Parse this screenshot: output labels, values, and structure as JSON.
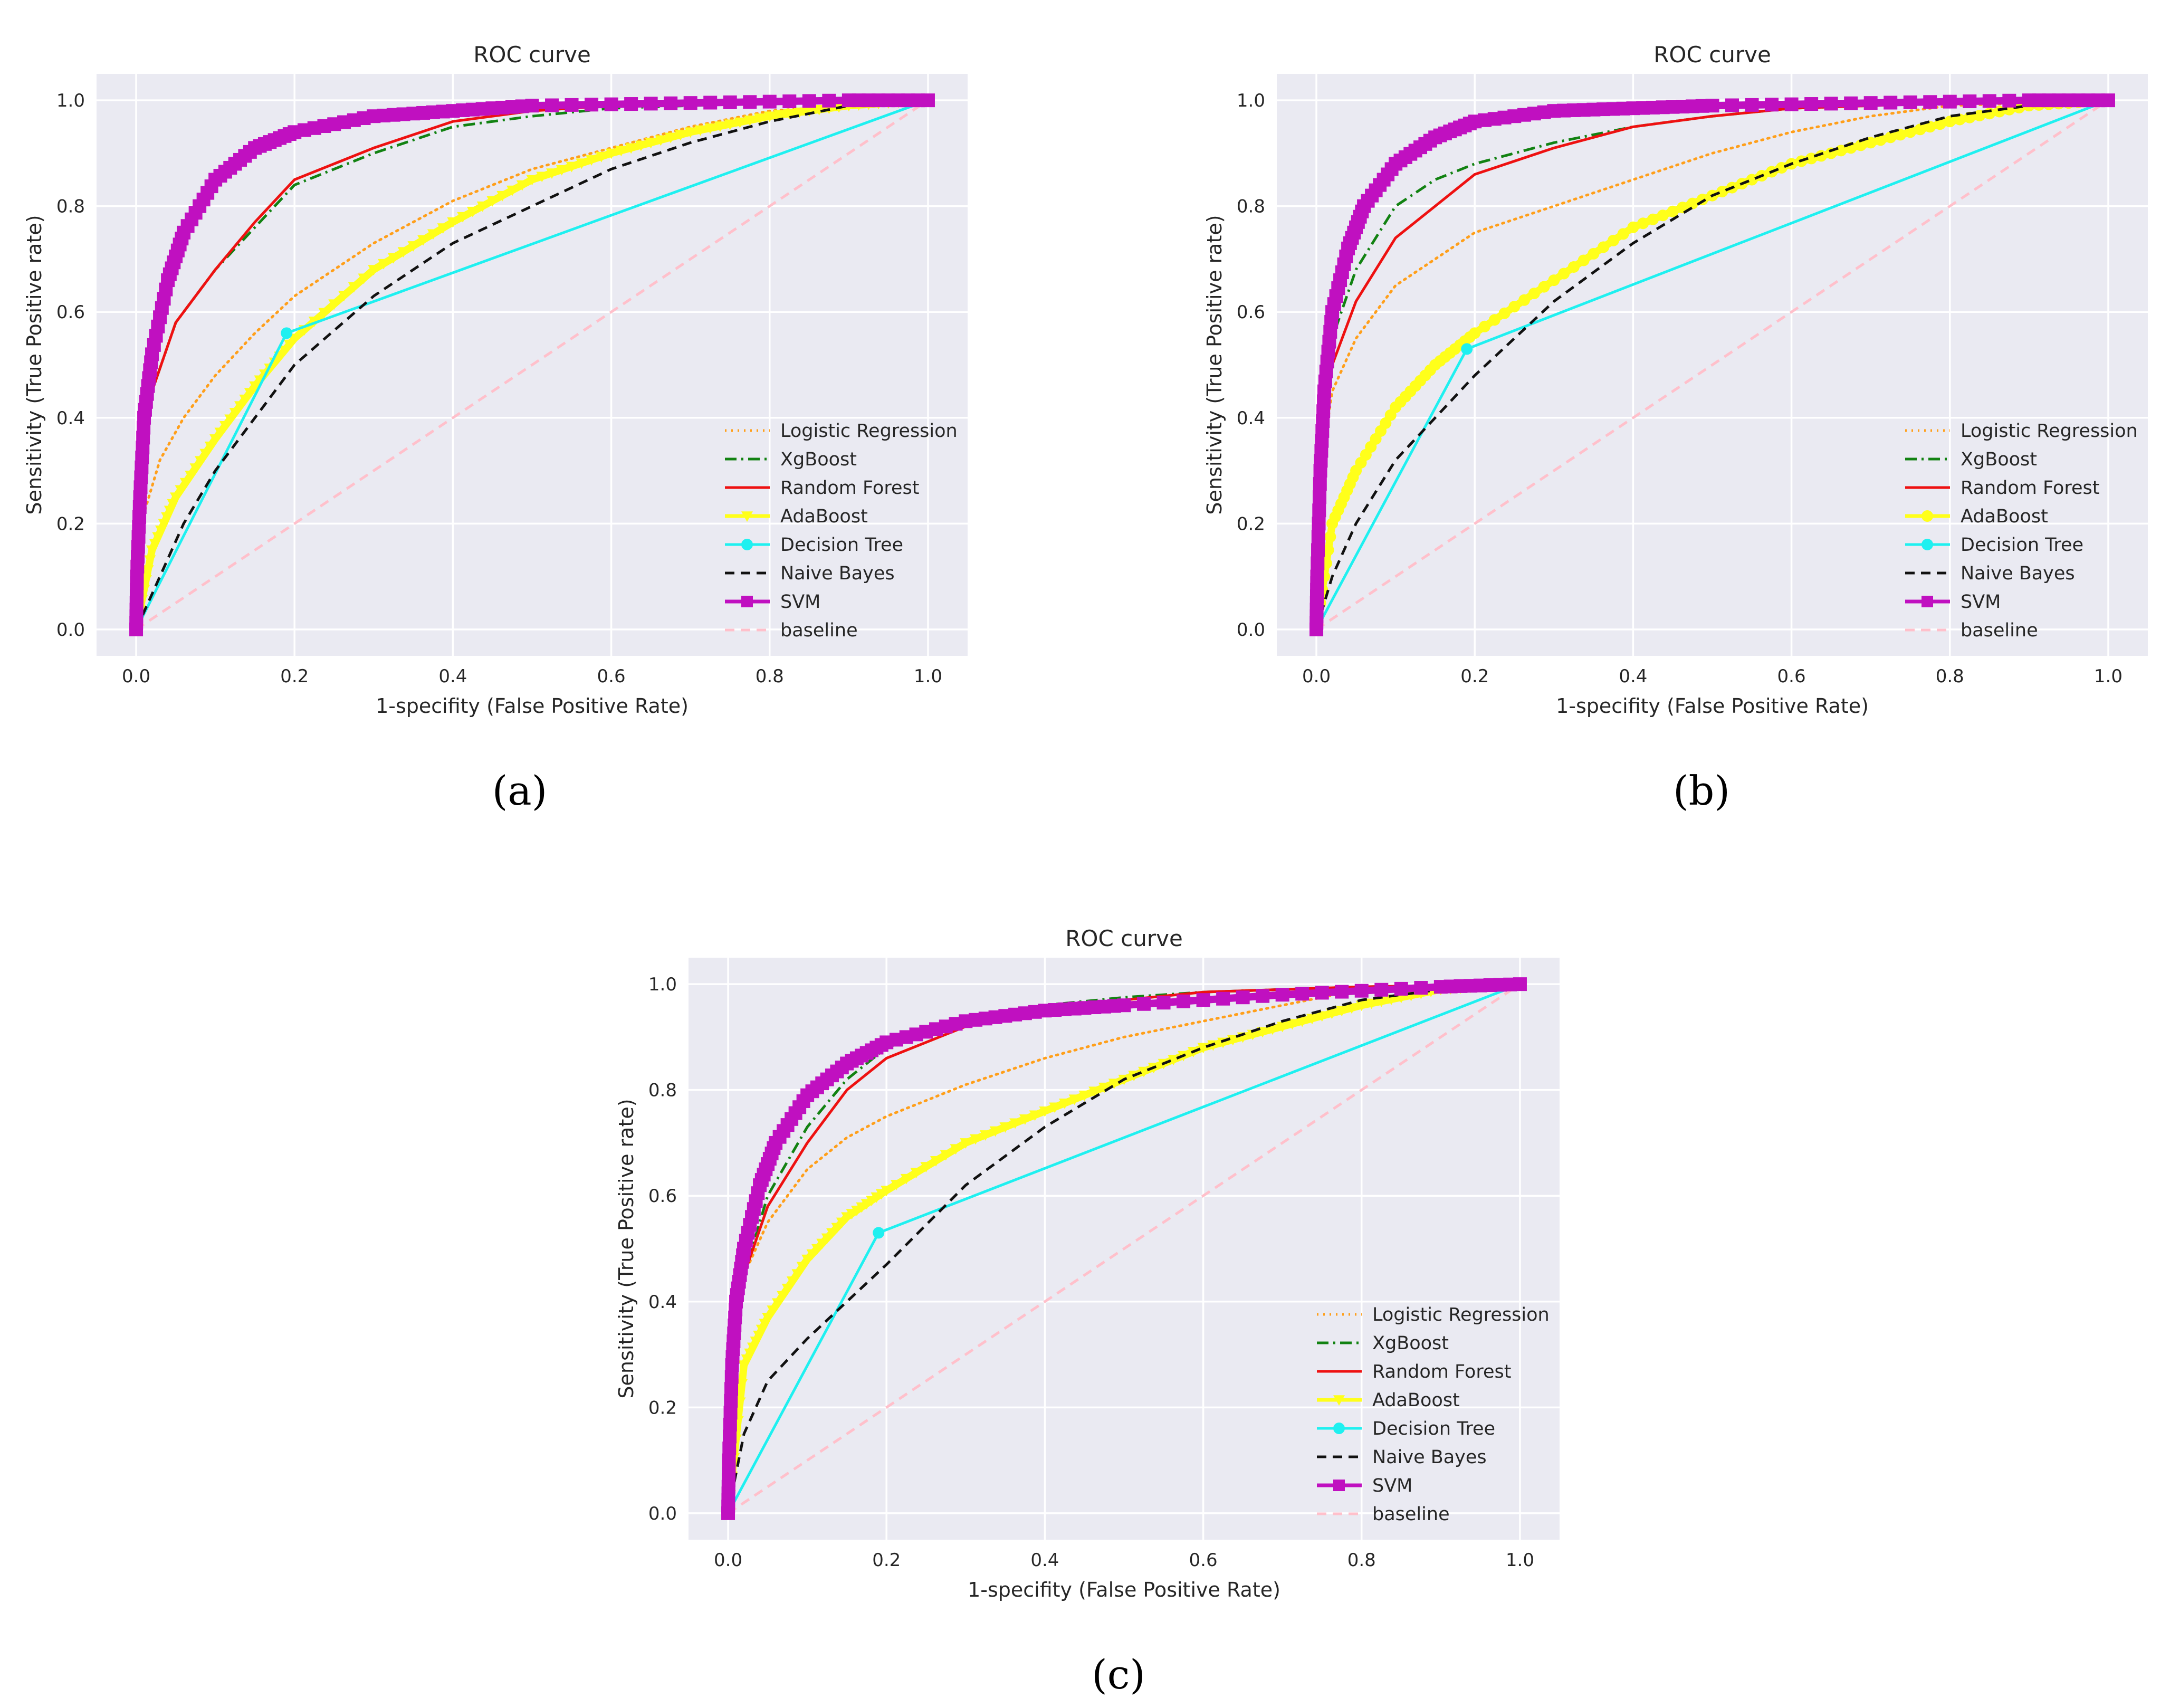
{
  "chart_data": [
    {
      "panel_label": "(a)",
      "type": "line",
      "title": "ROC curve",
      "xlabel": "1-specifity (False Positive Rate)",
      "ylabel": "Sensitivity (True Positive rate)",
      "xlim": [
        -0.05,
        1.05
      ],
      "ylim": [
        -0.05,
        1.05
      ],
      "xticks": [
        "0.0",
        "0.2",
        "0.4",
        "0.6",
        "0.8",
        "1.0"
      ],
      "yticks": [
        "0.0",
        "0.2",
        "0.4",
        "0.6",
        "0.8",
        "1.0"
      ],
      "legend_position": "lower right",
      "series": [
        {
          "name": "Logistic Regression",
          "color": "#ff9f1a",
          "style": "dotted",
          "x": [
            0,
            0.01,
            0.03,
            0.06,
            0.1,
            0.15,
            0.2,
            0.3,
            0.4,
            0.5,
            0.6,
            0.7,
            0.8,
            0.9,
            1.0
          ],
          "y": [
            0,
            0.22,
            0.32,
            0.4,
            0.48,
            0.56,
            0.63,
            0.73,
            0.81,
            0.87,
            0.91,
            0.95,
            0.98,
            0.99,
            1.0
          ]
        },
        {
          "name": "XgBoost",
          "color": "#128212",
          "style": "dashdot",
          "x": [
            0,
            0.005,
            0.02,
            0.05,
            0.1,
            0.15,
            0.2,
            0.3,
            0.4,
            0.5,
            0.6,
            0.8,
            1.0
          ],
          "y": [
            0,
            0.3,
            0.45,
            0.58,
            0.68,
            0.76,
            0.84,
            0.9,
            0.95,
            0.97,
            0.985,
            0.995,
            1.0
          ]
        },
        {
          "name": "Random Forest",
          "color": "#ee1111",
          "style": "solid",
          "x": [
            0,
            0.005,
            0.02,
            0.05,
            0.1,
            0.15,
            0.2,
            0.3,
            0.4,
            0.5,
            0.6,
            0.8,
            1.0
          ],
          "y": [
            0,
            0.3,
            0.45,
            0.58,
            0.68,
            0.77,
            0.85,
            0.91,
            0.96,
            0.98,
            0.99,
            0.997,
            1.0
          ]
        },
        {
          "name": "AdaBoost",
          "color": "#ffff1a",
          "style": "thick",
          "marker": "triangle-down",
          "x": [
            0,
            0.02,
            0.05,
            0.1,
            0.15,
            0.2,
            0.3,
            0.4,
            0.5,
            0.6,
            0.7,
            0.8,
            0.9,
            1.0
          ],
          "y": [
            0,
            0.15,
            0.25,
            0.36,
            0.46,
            0.55,
            0.68,
            0.77,
            0.85,
            0.9,
            0.94,
            0.97,
            0.99,
            1.0
          ]
        },
        {
          "name": "Decision Tree",
          "color": "#1ff0f0",
          "style": "solid",
          "marker": "circle",
          "x": [
            0,
            0.19,
            1.0
          ],
          "y": [
            0,
            0.56,
            1.0
          ]
        },
        {
          "name": "Naive Bayes",
          "color": "#111111",
          "style": "dashed",
          "x": [
            0,
            0.03,
            0.06,
            0.1,
            0.15,
            0.2,
            0.3,
            0.4,
            0.5,
            0.6,
            0.7,
            0.8,
            0.9,
            1.0
          ],
          "y": [
            0,
            0.1,
            0.2,
            0.3,
            0.4,
            0.5,
            0.63,
            0.73,
            0.8,
            0.87,
            0.92,
            0.96,
            0.99,
            1.0
          ]
        },
        {
          "name": "SVM",
          "color": "#c010c0",
          "style": "thick",
          "marker": "square",
          "x": [
            0,
            0.001,
            0.005,
            0.01,
            0.02,
            0.04,
            0.06,
            0.1,
            0.15,
            0.2,
            0.3,
            0.4,
            0.5,
            0.7,
            0.9,
            1.0
          ],
          "y": [
            0,
            0.1,
            0.25,
            0.4,
            0.52,
            0.66,
            0.75,
            0.85,
            0.91,
            0.94,
            0.97,
            0.98,
            0.99,
            0.995,
            1.0,
            1.0
          ]
        },
        {
          "name": "baseline",
          "color": "#ffc0cb",
          "style": "dashed",
          "x": [
            0,
            1
          ],
          "y": [
            0,
            1
          ]
        }
      ]
    },
    {
      "panel_label": "(b)",
      "type": "line",
      "title": "ROC curve",
      "xlabel": "1-specifity (False Positive Rate)",
      "ylabel": "Sensitivity (True Positive rate)",
      "xlim": [
        -0.05,
        1.05
      ],
      "ylim": [
        -0.05,
        1.05
      ],
      "xticks": [
        "0.0",
        "0.2",
        "0.4",
        "0.6",
        "0.8",
        "1.0"
      ],
      "yticks": [
        "0.0",
        "0.2",
        "0.4",
        "0.6",
        "0.8",
        "1.0"
      ],
      "legend_position": "lower right",
      "series": [
        {
          "name": "Logistic Regression",
          "color": "#ff9f1a",
          "style": "dotted",
          "x": [
            0,
            0.005,
            0.02,
            0.05,
            0.1,
            0.15,
            0.2,
            0.3,
            0.4,
            0.5,
            0.6,
            0.7,
            0.8,
            1.0
          ],
          "y": [
            0,
            0.3,
            0.45,
            0.55,
            0.65,
            0.7,
            0.75,
            0.8,
            0.85,
            0.9,
            0.94,
            0.97,
            0.99,
            1.0
          ]
        },
        {
          "name": "XgBoost",
          "color": "#128212",
          "style": "dashdot",
          "x": [
            0,
            0.005,
            0.02,
            0.05,
            0.1,
            0.15,
            0.2,
            0.3,
            0.4,
            0.5,
            0.6,
            0.8,
            1.0
          ],
          "y": [
            0,
            0.4,
            0.55,
            0.68,
            0.8,
            0.85,
            0.88,
            0.92,
            0.95,
            0.97,
            0.985,
            0.995,
            1.0
          ]
        },
        {
          "name": "Random Forest",
          "color": "#ee1111",
          "style": "solid",
          "x": [
            0,
            0.005,
            0.02,
            0.05,
            0.1,
            0.15,
            0.2,
            0.3,
            0.4,
            0.5,
            0.6,
            0.8,
            1.0
          ],
          "y": [
            0,
            0.35,
            0.5,
            0.62,
            0.74,
            0.8,
            0.86,
            0.91,
            0.95,
            0.97,
            0.985,
            0.995,
            1.0
          ]
        },
        {
          "name": "AdaBoost",
          "color": "#ffff1a",
          "style": "thick",
          "marker": "circle",
          "x": [
            0,
            0.02,
            0.05,
            0.1,
            0.15,
            0.2,
            0.3,
            0.4,
            0.5,
            0.6,
            0.7,
            0.8,
            0.9,
            1.0
          ],
          "y": [
            0,
            0.2,
            0.3,
            0.42,
            0.5,
            0.56,
            0.66,
            0.76,
            0.82,
            0.88,
            0.92,
            0.96,
            0.99,
            1.0
          ]
        },
        {
          "name": "Decision Tree",
          "color": "#1ff0f0",
          "style": "solid",
          "marker": "circle",
          "x": [
            0,
            0.19,
            1.0
          ],
          "y": [
            0,
            0.53,
            1.0
          ]
        },
        {
          "name": "Naive Bayes",
          "color": "#111111",
          "style": "dashed",
          "x": [
            0,
            0.02,
            0.05,
            0.1,
            0.15,
            0.2,
            0.3,
            0.4,
            0.5,
            0.6,
            0.7,
            0.8,
            0.9,
            1.0
          ],
          "y": [
            0,
            0.1,
            0.2,
            0.32,
            0.4,
            0.48,
            0.62,
            0.73,
            0.82,
            0.88,
            0.93,
            0.97,
            0.99,
            1.0
          ]
        },
        {
          "name": "SVM",
          "color": "#c010c0",
          "style": "thick",
          "marker": "square",
          "x": [
            0,
            0.001,
            0.005,
            0.01,
            0.02,
            0.04,
            0.06,
            0.1,
            0.15,
            0.2,
            0.3,
            0.4,
            0.5,
            0.7,
            0.9,
            1.0
          ],
          "y": [
            0,
            0.1,
            0.3,
            0.45,
            0.6,
            0.72,
            0.8,
            0.88,
            0.93,
            0.96,
            0.98,
            0.985,
            0.99,
            0.995,
            1.0,
            1.0
          ]
        },
        {
          "name": "baseline",
          "color": "#ffc0cb",
          "style": "dashed",
          "x": [
            0,
            1
          ],
          "y": [
            0,
            1
          ]
        }
      ]
    },
    {
      "panel_label": "(c)",
      "type": "line",
      "title": "ROC curve",
      "xlabel": "1-specifity (False Positive Rate)",
      "ylabel": "Sensitivity (True Positive rate)",
      "xlim": [
        -0.05,
        1.05
      ],
      "ylim": [
        -0.05,
        1.05
      ],
      "xticks": [
        "0.0",
        "0.2",
        "0.4",
        "0.6",
        "0.8",
        "1.0"
      ],
      "yticks": [
        "0.0",
        "0.2",
        "0.4",
        "0.6",
        "0.8",
        "1.0"
      ],
      "legend_position": "lower right",
      "series": [
        {
          "name": "Logistic Regression",
          "color": "#ff9f1a",
          "style": "dotted",
          "x": [
            0,
            0.005,
            0.02,
            0.05,
            0.1,
            0.15,
            0.2,
            0.3,
            0.4,
            0.5,
            0.6,
            0.7,
            0.8,
            1.0
          ],
          "y": [
            0,
            0.3,
            0.45,
            0.55,
            0.65,
            0.71,
            0.75,
            0.81,
            0.86,
            0.9,
            0.93,
            0.96,
            0.99,
            1.0
          ]
        },
        {
          "name": "XgBoost",
          "color": "#128212",
          "style": "dashdot",
          "x": [
            0,
            0.005,
            0.02,
            0.05,
            0.1,
            0.15,
            0.2,
            0.3,
            0.4,
            0.5,
            0.6,
            0.8,
            1.0
          ],
          "y": [
            0,
            0.3,
            0.45,
            0.6,
            0.73,
            0.82,
            0.88,
            0.93,
            0.96,
            0.975,
            0.985,
            0.995,
            1.0
          ]
        },
        {
          "name": "Random Forest",
          "color": "#ee1111",
          "style": "solid",
          "x": [
            0,
            0.005,
            0.02,
            0.05,
            0.1,
            0.15,
            0.2,
            0.3,
            0.4,
            0.5,
            0.6,
            0.8,
            1.0
          ],
          "y": [
            0,
            0.3,
            0.45,
            0.58,
            0.7,
            0.8,
            0.86,
            0.92,
            0.95,
            0.97,
            0.985,
            0.995,
            1.0
          ]
        },
        {
          "name": "AdaBoost",
          "color": "#ffff1a",
          "style": "thick",
          "marker": "triangle-down",
          "x": [
            0,
            0.02,
            0.05,
            0.1,
            0.15,
            0.2,
            0.3,
            0.4,
            0.5,
            0.6,
            0.7,
            0.8,
            0.9,
            1.0
          ],
          "y": [
            0,
            0.28,
            0.37,
            0.48,
            0.56,
            0.61,
            0.7,
            0.76,
            0.82,
            0.88,
            0.92,
            0.96,
            0.99,
            1.0
          ]
        },
        {
          "name": "Decision Tree",
          "color": "#1ff0f0",
          "style": "solid",
          "marker": "circle",
          "x": [
            0,
            0.19,
            1.0
          ],
          "y": [
            0,
            0.53,
            1.0
          ]
        },
        {
          "name": "Naive Bayes",
          "color": "#111111",
          "style": "dashed",
          "x": [
            0,
            0.02,
            0.05,
            0.1,
            0.15,
            0.2,
            0.3,
            0.4,
            0.5,
            0.6,
            0.7,
            0.8,
            0.9,
            1.0
          ],
          "y": [
            0,
            0.15,
            0.25,
            0.33,
            0.4,
            0.47,
            0.62,
            0.73,
            0.82,
            0.88,
            0.93,
            0.97,
            0.99,
            1.0
          ]
        },
        {
          "name": "SVM",
          "color": "#c010c0",
          "style": "thick",
          "marker": "square",
          "x": [
            0,
            0.001,
            0.005,
            0.01,
            0.02,
            0.04,
            0.06,
            0.1,
            0.15,
            0.2,
            0.3,
            0.4,
            0.5,
            0.7,
            0.9,
            1.0
          ],
          "y": [
            0,
            0.1,
            0.28,
            0.4,
            0.5,
            0.62,
            0.7,
            0.79,
            0.85,
            0.89,
            0.93,
            0.95,
            0.96,
            0.98,
            0.995,
            1.0
          ]
        },
        {
          "name": "baseline",
          "color": "#ffc0cb",
          "style": "dashed",
          "x": [
            0,
            1
          ],
          "y": [
            0,
            1
          ]
        }
      ]
    }
  ]
}
